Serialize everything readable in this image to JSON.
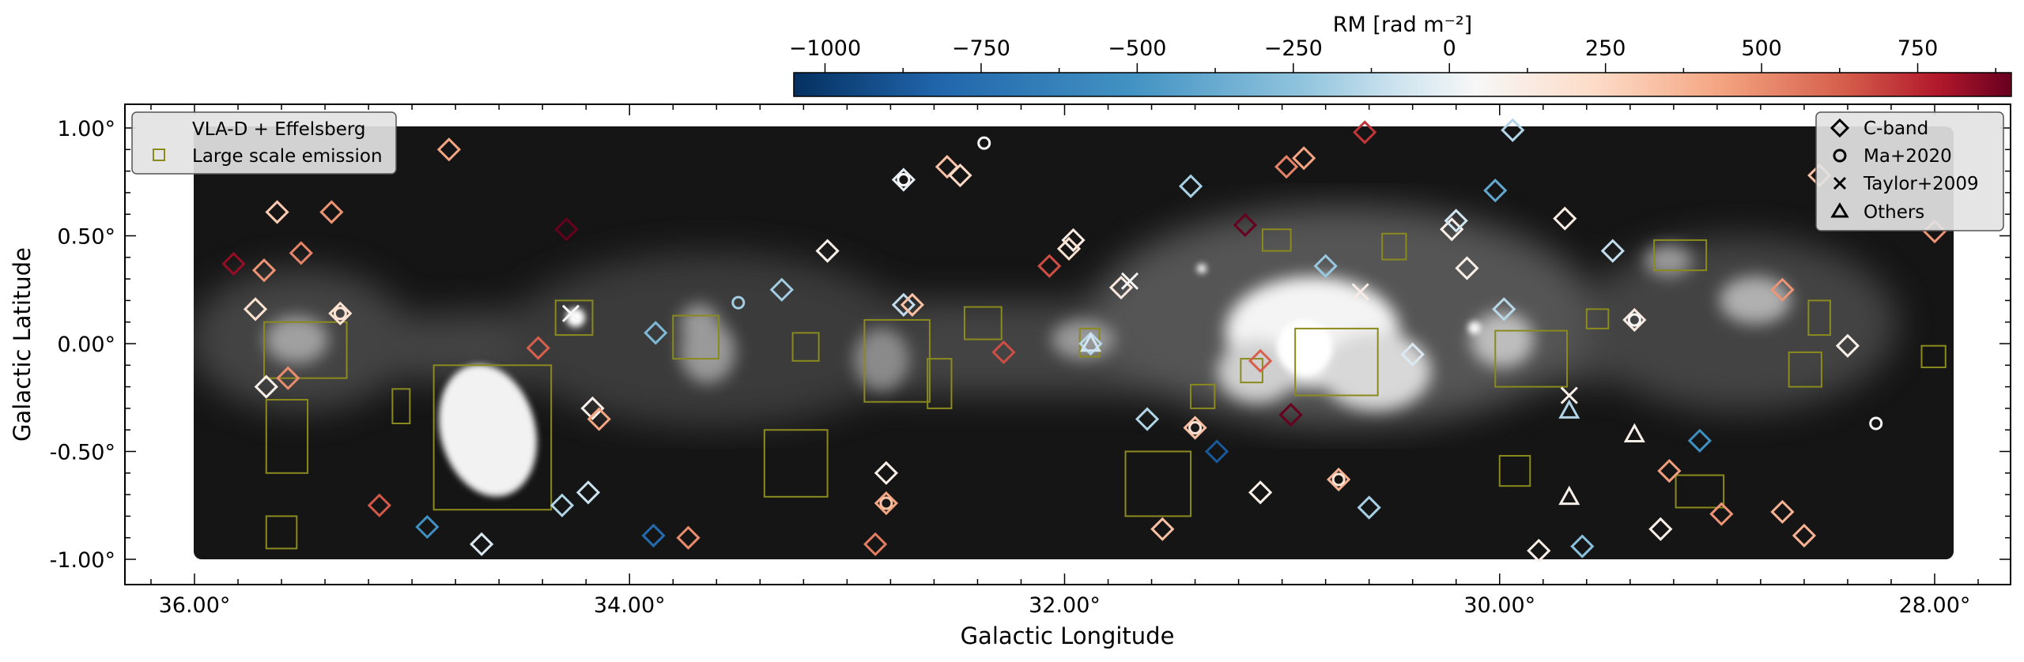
{
  "chart_data": {
    "type": "scatter",
    "title": "",
    "xlabel": "Galactic Longitude",
    "ylabel": "Galactic Latitude",
    "x_reversed": true,
    "xlim": [
      36.3,
      27.65
    ],
    "ylim": [
      -1.1,
      1.1
    ],
    "xticks": [
      36,
      34,
      32,
      30,
      28
    ],
    "xtick_labels": [
      "36.00°",
      "34.00°",
      "32.00°",
      "30.00°",
      "28.00°"
    ],
    "yticks": [
      1.0,
      0.5,
      0.0,
      -0.5,
      -1.0
    ],
    "ytick_labels": [
      "1.00°",
      "0.50°",
      "0.00°",
      "-0.50°",
      "-1.00°"
    ],
    "colorbar": {
      "label": "RM [rad m⁻²]",
      "colormap": "RdBu_r",
      "range": [
        -1050,
        900
      ],
      "ticks": [
        -1000,
        -750,
        -500,
        -250,
        0,
        250,
        500,
        750
      ],
      "tick_labels": [
        "−1000",
        "−750",
        "−500",
        "−250",
        "0",
        "250",
        "500",
        "750"
      ]
    },
    "legend_left": {
      "placement": "upper-left",
      "entries": [
        {
          "label": "VLA-D + Effelsberg",
          "marker": "none"
        },
        {
          "label": "Large scale emission",
          "marker": "square",
          "color": "#8a8a1e"
        }
      ]
    },
    "legend_right": {
      "placement": "upper-right",
      "entries": [
        {
          "label": "C-band",
          "marker": "diamond"
        },
        {
          "label": "Ma+2020",
          "marker": "circle"
        },
        {
          "label": "Taylor+2009",
          "marker": "cross"
        },
        {
          "label": "Others",
          "marker": "triangle"
        }
      ]
    },
    "boxes": [
      {
        "l0": 35.68,
        "l1": 35.3,
        "b0": -0.16,
        "b1": 0.1
      },
      {
        "l0": 35.67,
        "l1": 35.48,
        "b0": -0.6,
        "b1": -0.26
      },
      {
        "l0": 35.67,
        "l1": 35.53,
        "b0": -0.95,
        "b1": -0.8
      },
      {
        "l0": 35.09,
        "l1": 35.01,
        "b0": -0.37,
        "b1": -0.21
      },
      {
        "l0": 34.9,
        "l1": 34.36,
        "b0": -0.77,
        "b1": -0.1
      },
      {
        "l0": 34.34,
        "l1": 34.17,
        "b0": 0.04,
        "b1": 0.2
      },
      {
        "l0": 33.8,
        "l1": 33.59,
        "b0": -0.07,
        "b1": 0.13
      },
      {
        "l0": 33.25,
        "l1": 33.13,
        "b0": -0.08,
        "b1": 0.05
      },
      {
        "l0": 33.38,
        "l1": 33.09,
        "b0": -0.71,
        "b1": -0.4
      },
      {
        "l0": 32.92,
        "l1": 32.62,
        "b0": -0.27,
        "b1": 0.11
      },
      {
        "l0": 32.63,
        "l1": 32.52,
        "b0": -0.3,
        "b1": -0.07
      },
      {
        "l0": 32.46,
        "l1": 32.29,
        "b0": 0.02,
        "b1": 0.17
      },
      {
        "l0": 31.93,
        "l1": 31.84,
        "b0": -0.06,
        "b1": 0.07
      },
      {
        "l0": 31.72,
        "l1": 31.42,
        "b0": -0.8,
        "b1": -0.5
      },
      {
        "l0": 31.42,
        "l1": 31.31,
        "b0": -0.3,
        "b1": -0.19
      },
      {
        "l0": 31.19,
        "l1": 31.09,
        "b0": -0.18,
        "b1": -0.07
      },
      {
        "l0": 31.09,
        "l1": 30.96,
        "b0": 0.43,
        "b1": 0.53
      },
      {
        "l0": 30.94,
        "l1": 30.56,
        "b0": -0.24,
        "b1": 0.07
      },
      {
        "l0": 30.54,
        "l1": 30.43,
        "b0": 0.39,
        "b1": 0.51
      },
      {
        "l0": 30.02,
        "l1": 29.69,
        "b0": -0.2,
        "b1": 0.06
      },
      {
        "l0": 30.0,
        "l1": 29.86,
        "b0": -0.66,
        "b1": -0.52
      },
      {
        "l0": 29.6,
        "l1": 29.5,
        "b0": 0.07,
        "b1": 0.16
      },
      {
        "l0": 29.29,
        "l1": 29.05,
        "b0": 0.34,
        "b1": 0.48
      },
      {
        "l0": 29.19,
        "l1": 28.97,
        "b0": -0.76,
        "b1": -0.61
      },
      {
        "l0": 28.67,
        "l1": 28.52,
        "b0": -0.2,
        "b1": -0.04
      },
      {
        "l0": 28.58,
        "l1": 28.48,
        "b0": 0.04,
        "b1": 0.2
      },
      {
        "l0": 28.06,
        "l1": 27.95,
        "b0": -0.11,
        "b1": -0.01
      }
    ],
    "points": [
      {
        "l": 35.82,
        "b": 0.37,
        "rm": 880,
        "m": "diamond"
      },
      {
        "l": 35.72,
        "b": 0.16,
        "rm": 160,
        "m": "diamond"
      },
      {
        "l": 35.68,
        "b": 0.34,
        "rm": 450,
        "m": "diamond"
      },
      {
        "l": 35.62,
        "b": 0.61,
        "rm": 260,
        "m": "diamond"
      },
      {
        "l": 35.67,
        "b": -0.2,
        "rm": 60,
        "m": "diamond"
      },
      {
        "l": 35.57,
        "b": -0.16,
        "rm": 470,
        "m": "diamond"
      },
      {
        "l": 35.51,
        "b": 0.42,
        "rm": 500,
        "m": "diamond"
      },
      {
        "l": 35.37,
        "b": 0.61,
        "rm": 450,
        "m": "diamond"
      },
      {
        "l": 35.33,
        "b": 0.14,
        "rm": 150,
        "m": "diamond"
      },
      {
        "l": 35.33,
        "b": 0.14,
        "rm": 150,
        "m": "circle"
      },
      {
        "l": 35.15,
        "b": -0.75,
        "rm": 620,
        "m": "diamond"
      },
      {
        "l": 34.93,
        "b": -0.85,
        "rm": -620,
        "m": "diamond"
      },
      {
        "l": 34.83,
        "b": 0.9,
        "rm": 400,
        "m": "diamond"
      },
      {
        "l": 34.68,
        "b": -0.93,
        "rm": -150,
        "m": "diamond"
      },
      {
        "l": 34.42,
        "b": -0.02,
        "rm": 600,
        "m": "diamond"
      },
      {
        "l": 34.29,
        "b": 0.53,
        "rm": 1050,
        "m": "diamond"
      },
      {
        "l": 34.27,
        "b": 0.14,
        "rm": 0,
        "m": "cross"
      },
      {
        "l": 34.31,
        "b": -0.75,
        "rm": -300,
        "m": "diamond"
      },
      {
        "l": 34.19,
        "b": -0.69,
        "rm": -220,
        "m": "diamond"
      },
      {
        "l": 34.17,
        "b": -0.3,
        "rm": 60,
        "m": "diamond"
      },
      {
        "l": 34.14,
        "b": -0.35,
        "rm": 400,
        "m": "diamond"
      },
      {
        "l": 33.88,
        "b": 0.05,
        "rm": -450,
        "m": "diamond"
      },
      {
        "l": 33.89,
        "b": -0.89,
        "rm": -780,
        "m": "diamond"
      },
      {
        "l": 33.73,
        "b": -0.9,
        "rm": 470,
        "m": "diamond"
      },
      {
        "l": 33.5,
        "b": 0.19,
        "rm": -350,
        "m": "circle"
      },
      {
        "l": 33.3,
        "b": 0.25,
        "rm": -350,
        "m": "diamond"
      },
      {
        "l": 33.09,
        "b": 0.43,
        "rm": 60,
        "m": "diamond"
      },
      {
        "l": 32.87,
        "b": -0.93,
        "rm": 520,
        "m": "diamond"
      },
      {
        "l": 32.82,
        "b": -0.6,
        "rm": 60,
        "m": "diamond"
      },
      {
        "l": 32.82,
        "b": -0.74,
        "rm": 400,
        "m": "diamond"
      },
      {
        "l": 32.82,
        "b": -0.74,
        "rm": 300,
        "m": "circle"
      },
      {
        "l": 32.74,
        "b": 0.76,
        "rm": -100,
        "m": "diamond"
      },
      {
        "l": 32.74,
        "b": 0.76,
        "rm": 0,
        "m": "circle"
      },
      {
        "l": 32.74,
        "b": 0.18,
        "rm": -250,
        "m": "diamond"
      },
      {
        "l": 32.7,
        "b": 0.18,
        "rm": 300,
        "m": "diamond"
      },
      {
        "l": 32.54,
        "b": 0.82,
        "rm": 300,
        "m": "diamond"
      },
      {
        "l": 32.48,
        "b": 0.78,
        "rm": 200,
        "m": "diamond"
      },
      {
        "l": 32.37,
        "b": 0.93,
        "rm": 0,
        "m": "circle"
      },
      {
        "l": 32.28,
        "b": -0.04,
        "rm": 650,
        "m": "diamond"
      },
      {
        "l": 32.07,
        "b": 0.36,
        "rm": 650,
        "m": "diamond"
      },
      {
        "l": 31.96,
        "b": 0.48,
        "rm": 80,
        "m": "diamond"
      },
      {
        "l": 31.98,
        "b": 0.44,
        "rm": 150,
        "m": "diamond"
      },
      {
        "l": 31.88,
        "b": 0.0,
        "rm": -280,
        "m": "diamond"
      },
      {
        "l": 31.88,
        "b": 0.0,
        "rm": -200,
        "m": "triangle"
      },
      {
        "l": 31.74,
        "b": 0.26,
        "rm": 100,
        "m": "diamond"
      },
      {
        "l": 31.7,
        "b": 0.29,
        "rm": 0,
        "m": "cross"
      },
      {
        "l": 31.62,
        "b": -0.35,
        "rm": -300,
        "m": "diamond"
      },
      {
        "l": 31.55,
        "b": -0.86,
        "rm": 300,
        "m": "diamond"
      },
      {
        "l": 31.42,
        "b": 0.73,
        "rm": -330,
        "m": "diamond"
      },
      {
        "l": 31.4,
        "b": -0.39,
        "rm": 300,
        "m": "diamond"
      },
      {
        "l": 31.4,
        "b": -0.39,
        "rm": 150,
        "m": "circle"
      },
      {
        "l": 31.3,
        "b": -0.5,
        "rm": -850,
        "m": "diamond"
      },
      {
        "l": 31.17,
        "b": 0.55,
        "rm": 1050,
        "m": "diamond"
      },
      {
        "l": 31.1,
        "b": -0.08,
        "rm": 600,
        "m": "diamond"
      },
      {
        "l": 31.1,
        "b": -0.69,
        "rm": 60,
        "m": "diamond"
      },
      {
        "l": 30.98,
        "b": 0.82,
        "rm": 500,
        "m": "diamond"
      },
      {
        "l": 30.9,
        "b": 0.86,
        "rm": 400,
        "m": "diamond"
      },
      {
        "l": 30.96,
        "b": -0.33,
        "rm": 1050,
        "m": "diamond"
      },
      {
        "l": 30.8,
        "b": 0.36,
        "rm": -380,
        "m": "diamond"
      },
      {
        "l": 30.74,
        "b": -0.63,
        "rm": 350,
        "m": "diamond"
      },
      {
        "l": 30.74,
        "b": -0.63,
        "rm": 150,
        "m": "circle"
      },
      {
        "l": 30.62,
        "b": 0.98,
        "rm": 720,
        "m": "diamond"
      },
      {
        "l": 30.64,
        "b": 0.24,
        "rm": 80,
        "m": "cross"
      },
      {
        "l": 30.6,
        "b": -0.76,
        "rm": -330,
        "m": "diamond"
      },
      {
        "l": 30.4,
        "b": -0.05,
        "rm": -150,
        "m": "diamond"
      },
      {
        "l": 30.22,
        "b": 0.53,
        "rm": 60,
        "m": "diamond"
      },
      {
        "l": 30.2,
        "b": 0.57,
        "rm": -200,
        "m": "diamond"
      },
      {
        "l": 30.15,
        "b": 0.35,
        "rm": 60,
        "m": "diamond"
      },
      {
        "l": 30.02,
        "b": 0.71,
        "rm": -520,
        "m": "diamond"
      },
      {
        "l": 29.98,
        "b": 0.16,
        "rm": -280,
        "m": "diamond"
      },
      {
        "l": 29.94,
        "b": 0.99,
        "rm": -300,
        "m": "diamond"
      },
      {
        "l": 29.82,
        "b": -0.96,
        "rm": 60,
        "m": "diamond"
      },
      {
        "l": 29.7,
        "b": 0.58,
        "rm": 80,
        "m": "diamond"
      },
      {
        "l": 29.68,
        "b": -0.24,
        "rm": 60,
        "m": "cross"
      },
      {
        "l": 29.68,
        "b": -0.31,
        "rm": -300,
        "m": "triangle"
      },
      {
        "l": 29.68,
        "b": -0.71,
        "rm": 60,
        "m": "triangle"
      },
      {
        "l": 29.62,
        "b": -0.94,
        "rm": -420,
        "m": "diamond"
      },
      {
        "l": 29.48,
        "b": 0.43,
        "rm": -250,
        "m": "diamond"
      },
      {
        "l": 29.38,
        "b": 0.11,
        "rm": 100,
        "m": "diamond"
      },
      {
        "l": 29.38,
        "b": 0.11,
        "rm": 0,
        "m": "circle"
      },
      {
        "l": 29.38,
        "b": -0.42,
        "rm": 60,
        "m": "triangle"
      },
      {
        "l": 29.22,
        "b": -0.59,
        "rm": 420,
        "m": "diamond"
      },
      {
        "l": 29.26,
        "b": -0.86,
        "rm": 60,
        "m": "diamond"
      },
      {
        "l": 29.08,
        "b": -0.45,
        "rm": -620,
        "m": "diamond"
      },
      {
        "l": 28.98,
        "b": -0.79,
        "rm": 450,
        "m": "diamond"
      },
      {
        "l": 28.7,
        "b": 0.25,
        "rm": 450,
        "m": "diamond"
      },
      {
        "l": 28.7,
        "b": -0.78,
        "rm": 350,
        "m": "diamond"
      },
      {
        "l": 28.6,
        "b": -0.89,
        "rm": 350,
        "m": "diamond"
      },
      {
        "l": 28.4,
        "b": -0.01,
        "rm": 60,
        "m": "diamond"
      },
      {
        "l": 28.27,
        "b": -0.37,
        "rm": 0,
        "m": "circle"
      },
      {
        "l": 28.53,
        "b": 0.78,
        "rm": 300,
        "m": "diamond"
      },
      {
        "l": 28.0,
        "b": 0.52,
        "rm": 450,
        "m": "diamond"
      }
    ]
  }
}
